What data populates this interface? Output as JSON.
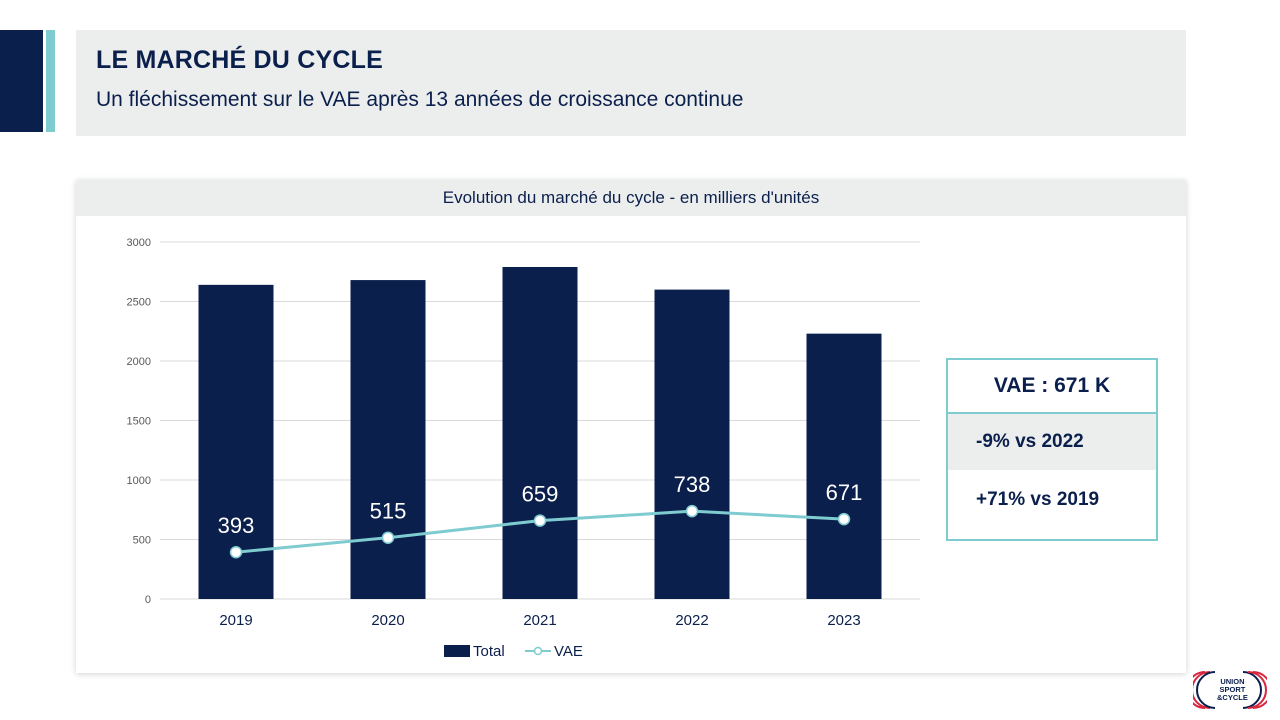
{
  "header": {
    "title": "LE MARCHÉ DU CYCLE",
    "subtitle": "Un fléchissement sur le VAE après 13 années de croissance continue"
  },
  "colors": {
    "navy": "#0b1f4d",
    "teal": "#7ecbd0",
    "panel": "#eceeed"
  },
  "chart_data": {
    "type": "bar",
    "title": "Evolution du marché du cycle - en milliers d'unités",
    "categories": [
      "2019",
      "2020",
      "2021",
      "2022",
      "2023"
    ],
    "series": [
      {
        "name": "Total",
        "type": "bar",
        "color": "#0b1f4d",
        "values": [
          2640,
          2680,
          2790,
          2600,
          2230
        ]
      },
      {
        "name": "VAE",
        "type": "line",
        "color": "#7ecbd0",
        "values": [
          393,
          515,
          659,
          738,
          671
        ],
        "data_labels": [
          "393",
          "515",
          "659",
          "738",
          "671"
        ]
      }
    ],
    "ylim": [
      0,
      3000
    ],
    "yticks": [
      0,
      500,
      1000,
      1500,
      2000,
      2500,
      3000
    ],
    "grid": true,
    "legend": "bottom"
  },
  "kpi": {
    "headline": "VAE : 671 K",
    "line1": "-9% vs 2022",
    "line2": "+71% vs 2019"
  },
  "logo": {
    "line1": "UNION",
    "line2": "SPORT",
    "line3": "&CYCLE"
  }
}
